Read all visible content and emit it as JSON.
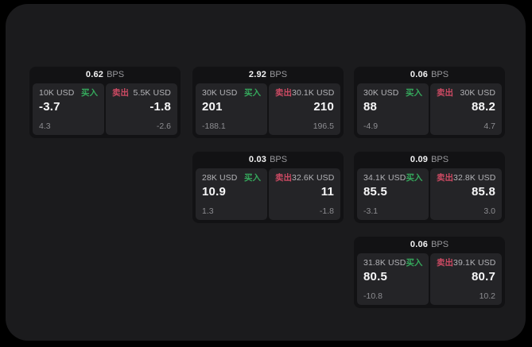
{
  "labels": {
    "bps_unit": "BPS",
    "buy": "买入",
    "sell": "卖出"
  },
  "colors": {
    "page_background": "#000000",
    "panel_background": "#1b1b1d",
    "card_background": "#121214",
    "tile_background": "#242427",
    "buy_green": "#35a85c",
    "sell_red": "#cc4a63"
  },
  "cards": [
    {
      "bps": "0.62",
      "buy": {
        "amount": "10K USD",
        "price": "-3.7",
        "sub": "4.3"
      },
      "sell": {
        "amount": "5.5K USD",
        "price": "-1.8",
        "sub": "-2.6"
      }
    },
    {
      "bps": "2.92",
      "buy": {
        "amount": "30K USD",
        "price": "201",
        "sub": "-188.1"
      },
      "sell": {
        "amount": "30.1K USD",
        "price": "210",
        "sub": "196.5"
      }
    },
    {
      "bps": "0.06",
      "buy": {
        "amount": "30K USD",
        "price": "88",
        "sub": "-4.9"
      },
      "sell": {
        "amount": "30K USD",
        "price": "88.2",
        "sub": "4.7"
      }
    },
    {
      "bps": "0.03",
      "buy": {
        "amount": "28K USD",
        "price": "10.9",
        "sub": "1.3"
      },
      "sell": {
        "amount": "32.6K USD",
        "price": "11",
        "sub": "-1.8"
      }
    },
    {
      "bps": "0.09",
      "buy": {
        "amount": "34.1K USD",
        "price": "85.5",
        "sub": "-3.1"
      },
      "sell": {
        "amount": "32.8K USD",
        "price": "85.8",
        "sub": "3.0"
      }
    },
    {
      "bps": "0.06",
      "buy": {
        "amount": "31.8K USD",
        "price": "80.5",
        "sub": "-10.8"
      },
      "sell": {
        "amount": "39.1K USD",
        "price": "80.7",
        "sub": "10.2"
      }
    }
  ]
}
